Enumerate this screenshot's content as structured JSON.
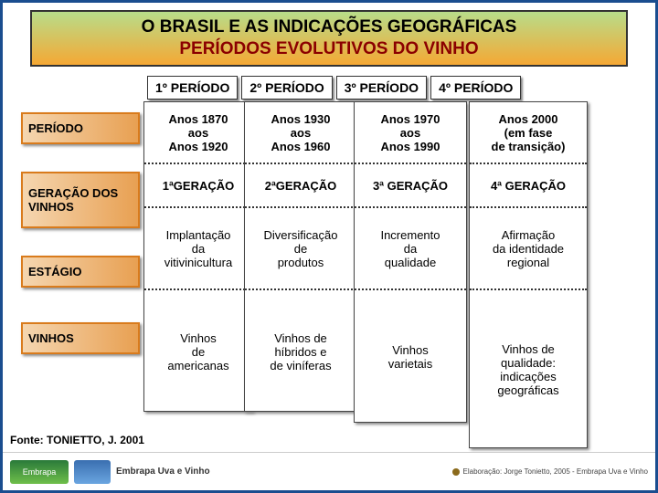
{
  "title": {
    "line1": "O BRASIL E AS INDICAÇÕES GEOGRÁFICAS",
    "line2": "PERÍODOS EVOLUTIVOS DO VINHO",
    "bg_gradient_from": "#b8dd8a",
    "bg_gradient_to": "#f5a834"
  },
  "side_labels": {
    "periodo": "PERÍODO",
    "geracao": "GERAÇÃO DOS VINHOS",
    "estagio": "ESTÁGIO",
    "vinhos": "VINHOS"
  },
  "period_headers": {
    "p1": "1º PERÍODO",
    "p2": "2º PERÍODO",
    "p3": "3º PERÍODO",
    "p4": "4º PERÍODO"
  },
  "columns": {
    "c1": {
      "periodo": "Anos 1870\naos\nAnos 1920",
      "geracao": "1ªGERAÇÃO",
      "estagio": "Implantação\nda\nvitivinicultura",
      "vinhos": "Vinhos\nde\namericanas"
    },
    "c2": {
      "periodo": "Anos 1930\naos\nAnos 1960",
      "geracao": "2ªGERAÇÃO",
      "estagio": "Diversificação\nde\nprodutos",
      "vinhos": "Vinhos de\nhíbridos e\nde viníferas"
    },
    "c3": {
      "periodo": "Anos 1970\naos\nAnos 1990",
      "geracao": "3ª GERAÇÃO",
      "estagio": "Incremento\nda\nqualidade",
      "vinhos": "Vinhos\nvarietais"
    },
    "c4": {
      "periodo": "Anos 2000\n(em fase\nde transição)",
      "geracao": "4ª GERAÇÃO",
      "estagio": "Afirmação\nda identidade\nregional",
      "vinhos": "Vinhos de\nqualidade:\nindicações\ngeográficas"
    }
  },
  "source": "Fonte: TONIETTO, J. 2001",
  "footer": {
    "logo_a": "Embrapa",
    "logo_c": "Embrapa Uva e Vinho",
    "credit": "Elaboração: Jorge Tonietto, 2005 - Embrapa Uva e Vinho"
  },
  "colors": {
    "frame_border": "#1a4d8f",
    "side_border": "#d97b1c",
    "side_bg_from": "#f5d6b0",
    "side_bg_to": "#e8a052",
    "subtitle": "#8b0000"
  }
}
